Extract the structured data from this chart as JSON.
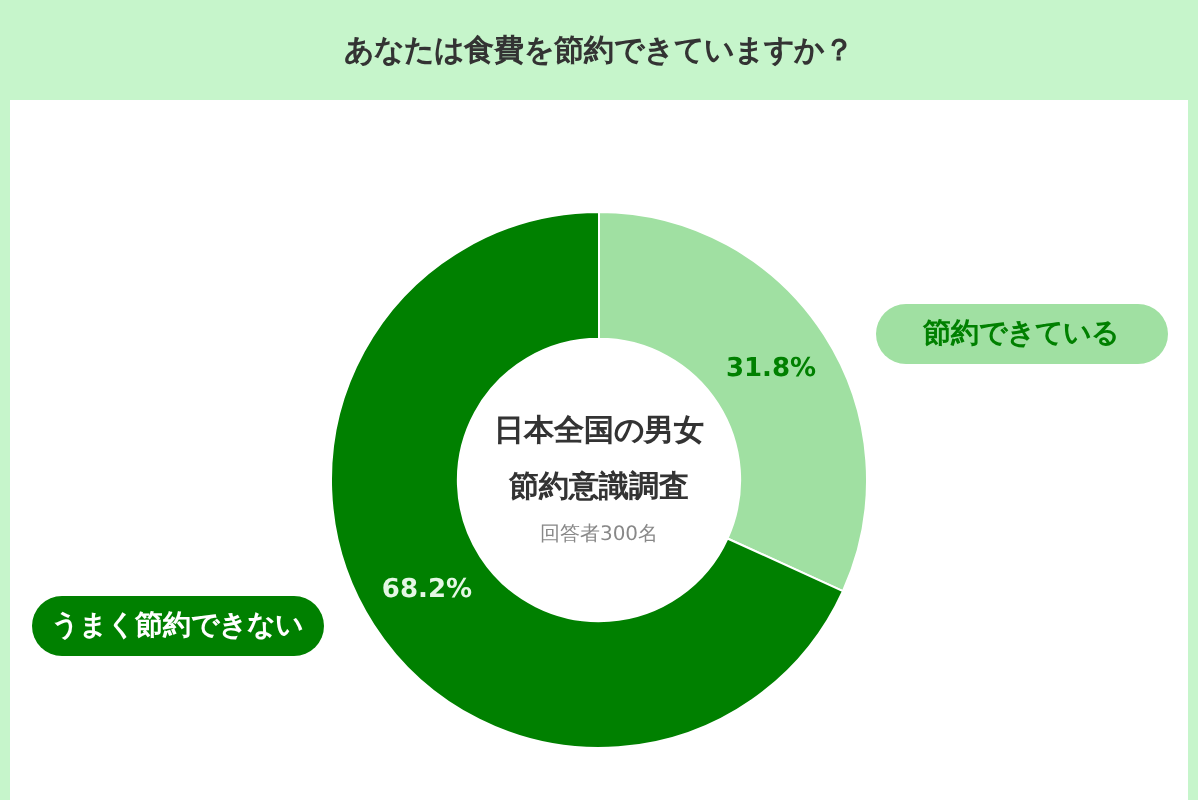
{
  "chart_data": {
    "type": "donut",
    "title": "あなたは食費を節約できていますか？",
    "categories": [
      "節約できている",
      "うまく節約できない"
    ],
    "values": [
      31.8,
      68.2
    ],
    "colors": [
      "#a0e0a2",
      "#008000"
    ],
    "value_labels": [
      "31.8%",
      "68.2%"
    ],
    "annotations": [
      "日本全国の男女",
      "節約意識調査",
      "回答者300名"
    ]
  }
}
